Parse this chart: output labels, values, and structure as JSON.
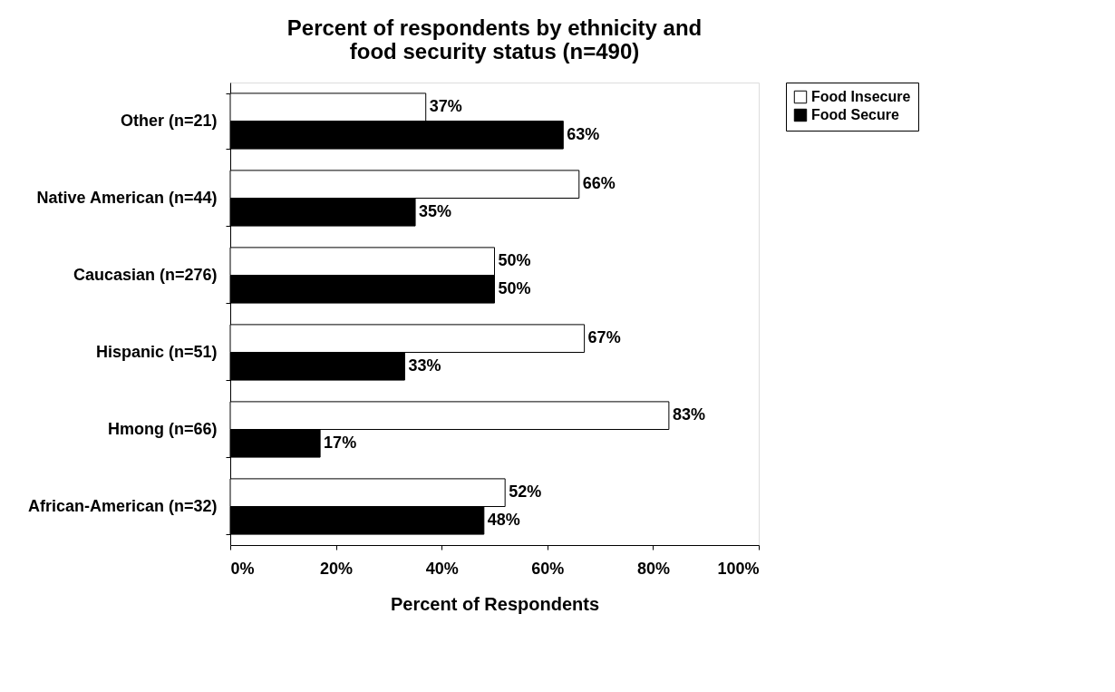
{
  "chart_data": {
    "type": "bar",
    "orientation": "horizontal",
    "title": "Percent of respondents by ethnicity and food security status (n=490)",
    "xlabel": "Percent of Respondents",
    "categories": [
      "Other (n=21)",
      "Native American (n=44)",
      "Caucasian (n=276)",
      "Hispanic (n=51)",
      "Hmong (n=66)",
      "African-American (n=32)"
    ],
    "series": [
      {
        "name": "Food Insecure",
        "color": "#ffffff",
        "values": [
          37,
          66,
          50,
          67,
          83,
          52
        ],
        "value_labels": [
          "37%",
          "66%",
          "50%",
          "67%",
          "83%",
          "52%"
        ]
      },
      {
        "name": "Food Secure",
        "color": "#000000",
        "values": [
          63,
          35,
          50,
          33,
          17,
          48
        ],
        "value_labels": [
          "63%",
          "35%",
          "50%",
          "33%",
          "17%",
          "48%"
        ]
      }
    ],
    "xlim": [
      0,
      100
    ],
    "xticks": [
      {
        "value": 0,
        "label": "0%"
      },
      {
        "value": 20,
        "label": "20%"
      },
      {
        "value": 40,
        "label": "40%"
      },
      {
        "value": 60,
        "label": "60%"
      },
      {
        "value": 80,
        "label": "80%"
      },
      {
        "value": 100,
        "label": "100%"
      }
    ],
    "grid": false,
    "legend": "right"
  }
}
